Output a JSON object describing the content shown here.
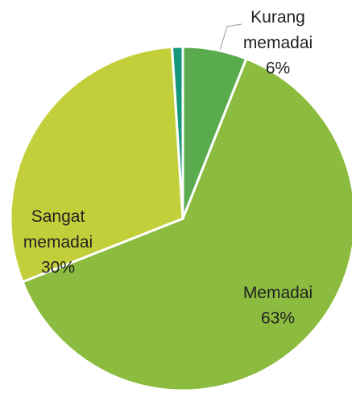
{
  "chart_data": {
    "type": "pie",
    "categories": [
      "Kurang memadai",
      "Memadai",
      "Sangat memadai",
      null
    ],
    "values": [
      6,
      63,
      30,
      1
    ],
    "value_labels": [
      "6%",
      "63%",
      "30%",
      null
    ],
    "colors": [
      "#5aab4e",
      "#8cbc3f",
      "#c3cf3a",
      "#16977a"
    ]
  }
}
